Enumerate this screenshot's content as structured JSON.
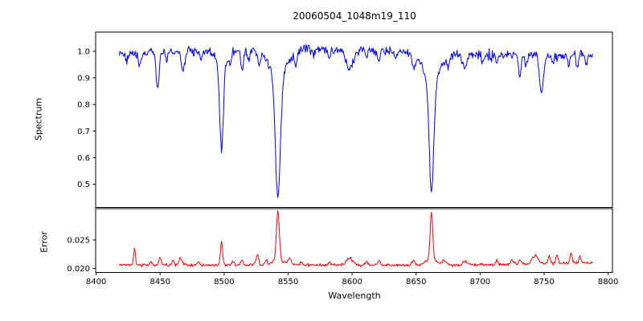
{
  "figure": {
    "title": "20060504_1048m19_110",
    "background": "#ffffff",
    "spine_color": "#000000"
  },
  "chart_data": {
    "type": "line",
    "title": "20060504_1048m19_110",
    "xlabel": "Wavelength",
    "xlim": [
      8399.6,
      8803.4
    ],
    "x_ticks": [
      8400,
      8450,
      8500,
      8550,
      8600,
      8650,
      8700,
      8750,
      8800
    ],
    "x_tick_labels": [
      "8400",
      "8450",
      "8500",
      "8550",
      "8600",
      "8650",
      "8700",
      "8750",
      "8800"
    ],
    "grid": false,
    "legend": "none",
    "height_ratios": [
      2.7,
      1
    ],
    "panels": [
      {
        "name": "spectrum",
        "ylabel": "Spectrum",
        "ylim": [
          0.413,
          1.072
        ],
        "y_ticks": [
          1.0,
          0.9,
          0.8,
          0.7,
          0.6,
          0.5
        ],
        "y_tick_labels": [
          "1.0",
          "0.9",
          "0.8",
          "0.7",
          "0.6",
          "0.5"
        ],
        "line_color": "#0000ff",
        "series": {
          "x_start": 8418,
          "x_end": 8788,
          "x_step": 0.5,
          "continuum_base": 0.998,
          "continuum_wave_amp": 0.012,
          "continuum_wave_phase": 8460,
          "continuum_wave_freq": 0.017,
          "noise_sigma": 0.008,
          "absorption_lines": [
            [
              8424,
              0.03,
              0.8
            ],
            [
              8434,
              0.05,
              0.9
            ],
            [
              8448,
              0.135,
              1.1
            ],
            [
              8455,
              0.03,
              0.8
            ],
            [
              8468,
              0.07,
              1.3
            ],
            [
              8482,
              0.03,
              0.8
            ],
            [
              8498,
              0.32,
              1.4
            ],
            [
              8498,
              0.055,
              5.0
            ],
            [
              8505,
              0.03,
              0.8
            ],
            [
              8514,
              0.075,
              1.1
            ],
            [
              8519,
              0.04,
              0.9
            ],
            [
              8527,
              0.04,
              1.0
            ],
            [
              8542,
              0.45,
              1.9
            ],
            [
              8542,
              0.11,
              7.0
            ],
            [
              8556,
              0.055,
              0.9
            ],
            [
              8570,
              0.03,
              0.8
            ],
            [
              8582,
              0.04,
              1.0
            ],
            [
              8598,
              0.075,
              2.8
            ],
            [
              8611,
              0.035,
              0.9
            ],
            [
              8621,
              0.045,
              1.0
            ],
            [
              8634,
              0.03,
              0.8
            ],
            [
              8648,
              0.05,
              1.1
            ],
            [
              8662,
              0.41,
              1.8
            ],
            [
              8662,
              0.105,
              6.5
            ],
            [
              8675,
              0.04,
              0.9
            ],
            [
              8688,
              0.055,
              1.6
            ],
            [
              8702,
              0.03,
              0.8
            ],
            [
              8713,
              0.04,
              0.9
            ],
            [
              8731,
              0.085,
              1.0
            ],
            [
              8736,
              0.04,
              0.8
            ],
            [
              8748,
              0.145,
              1.6
            ],
            [
              8757,
              0.04,
              0.8
            ],
            [
              8769,
              0.04,
              0.9
            ],
            [
              8776,
              0.05,
              0.9
            ],
            [
              8783,
              0.04,
              0.8
            ]
          ],
          "major_lines_noted": [
            8498,
            8542,
            8662
          ],
          "min_values_at_major_lines": [
            0.64,
            0.46,
            0.48
          ]
        }
      },
      {
        "name": "error",
        "ylabel": "Error",
        "ylim": [
          0.0193,
          0.0305
        ],
        "y_ticks": [
          0.025,
          0.02
        ],
        "y_tick_labels": [
          "0.025",
          "0.020"
        ],
        "line_color": "#ff0000",
        "series": {
          "x_start": 8418,
          "x_end": 8788,
          "x_step": 0.5,
          "baseline": 0.0206,
          "right_rise_start": 8690,
          "right_rise_end": 8790,
          "right_rise_amount": 0.0004,
          "noise_sigma": 0.00013,
          "peaks": [
            [
              8430,
              0.0028,
              0.7
            ],
            [
              8443,
              0.0006,
              0.8
            ],
            [
              8450,
              0.0013,
              0.9
            ],
            [
              8460,
              0.0008,
              0.8
            ],
            [
              8466,
              0.0013,
              1.2
            ],
            [
              8480,
              0.0006,
              0.8
            ],
            [
              8498,
              0.0043,
              0.8
            ],
            [
              8507,
              0.0009,
              0.9
            ],
            [
              8514,
              0.0008,
              0.9
            ],
            [
              8526,
              0.0019,
              1.0
            ],
            [
              8533,
              0.0009,
              0.8
            ],
            [
              8542,
              0.0085,
              1.1
            ],
            [
              8542,
              0.001,
              4.0
            ],
            [
              8551,
              0.0013,
              1.3
            ],
            [
              8560,
              0.0005,
              1.0
            ],
            [
              8582,
              0.0005,
              1.0
            ],
            [
              8598,
              0.0012,
              2.5
            ],
            [
              8611,
              0.0005,
              1.0
            ],
            [
              8621,
              0.0006,
              1.0
            ],
            [
              8648,
              0.0008,
              1.0
            ],
            [
              8662,
              0.0082,
              1.0
            ],
            [
              8662,
              0.001,
              4.0
            ],
            [
              8672,
              0.0008,
              1.5
            ],
            [
              8688,
              0.0006,
              2.0
            ],
            [
              8713,
              0.0006,
              1.0
            ],
            [
              8725,
              0.0008,
              1.2
            ],
            [
              8731,
              0.0007,
              1.0
            ],
            [
              8743,
              0.0014,
              2.2
            ],
            [
              8754,
              0.0014,
              0.8
            ],
            [
              8760,
              0.0015,
              0.8
            ],
            [
              8771,
              0.002,
              0.8
            ],
            [
              8778,
              0.0012,
              0.8
            ]
          ]
        }
      }
    ]
  }
}
